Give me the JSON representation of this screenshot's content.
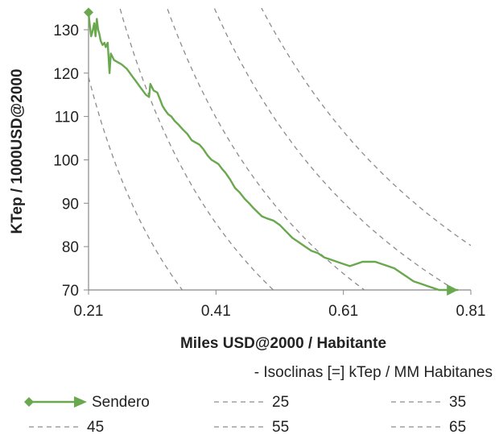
{
  "chart_data": {
    "type": "line",
    "title": "",
    "xlabel": "Miles USD@2000 / Habitante",
    "ylabel": "KTep / 1000USD@2000",
    "xlim": [
      0.21,
      0.81
    ],
    "ylim": [
      70,
      135
    ],
    "x_ticks": [
      0.21,
      0.41,
      0.61,
      0.81
    ],
    "x_tick_labels": [
      "0.21",
      "0.41",
      "0.61",
      "0.81"
    ],
    "y_ticks": [
      70,
      80,
      90,
      100,
      110,
      120,
      130
    ],
    "y_tick_labels": [
      "70",
      "80",
      "90",
      "100",
      "110",
      "120",
      "130"
    ],
    "grid": false,
    "note": "- Isoclinas [=] kTep / MM Habitanes",
    "colors": {
      "sendero": "#6aa84f",
      "isoclina": "#8c8c8c",
      "axis": "#888888"
    },
    "series": [
      {
        "name": "Sendero",
        "style": "solid-line-diamond-start-arrow-end",
        "x": [
          0.21,
          0.212,
          0.214,
          0.216,
          0.219,
          0.221,
          0.223,
          0.225,
          0.227,
          0.229,
          0.232,
          0.235,
          0.237,
          0.24,
          0.243,
          0.245,
          0.25,
          0.256,
          0.262,
          0.27,
          0.275,
          0.28,
          0.285,
          0.29,
          0.295,
          0.3,
          0.305,
          0.307,
          0.312,
          0.318,
          0.322,
          0.326,
          0.33,
          0.335,
          0.34,
          0.345,
          0.352,
          0.358,
          0.365,
          0.372,
          0.378,
          0.384,
          0.39,
          0.397,
          0.403,
          0.409,
          0.414,
          0.419,
          0.425,
          0.432,
          0.44,
          0.447,
          0.455,
          0.462,
          0.468,
          0.475,
          0.482,
          0.49,
          0.5,
          0.51,
          0.52,
          0.53,
          0.54,
          0.55,
          0.56,
          0.57,
          0.58,
          0.59,
          0.6,
          0.61,
          0.62,
          0.63,
          0.64,
          0.65,
          0.66,
          0.67,
          0.68,
          0.69,
          0.7,
          0.71,
          0.72,
          0.73,
          0.74,
          0.75,
          0.76,
          0.77,
          0.78,
          0.79
        ],
        "y": [
          134.0,
          131.0,
          128.5,
          129.5,
          131.5,
          128.5,
          132.5,
          130.0,
          129.0,
          127.5,
          126.5,
          127.0,
          126.0,
          127.0,
          120.0,
          124.5,
          123.0,
          122.5,
          122.0,
          121.0,
          120.0,
          119.0,
          118.0,
          117.0,
          116.0,
          115.0,
          114.5,
          117.5,
          116.0,
          115.5,
          114.0,
          112.5,
          111.5,
          110.5,
          110.0,
          109.0,
          108.0,
          107.0,
          106.0,
          104.5,
          104.0,
          103.5,
          102.5,
          101.0,
          100.0,
          99.5,
          99.0,
          98.0,
          97.0,
          95.5,
          93.5,
          92.5,
          91.0,
          90.0,
          89.0,
          88.0,
          87.0,
          86.5,
          86.0,
          85.0,
          83.5,
          82.0,
          81.0,
          80.0,
          79.0,
          78.5,
          77.5,
          77.0,
          76.5,
          76.0,
          75.5,
          76.0,
          76.5,
          76.5,
          76.5,
          76.0,
          75.5,
          75.0,
          74.0,
          73.0,
          72.0,
          71.5,
          71.0,
          70.5,
          70.0,
          70.0,
          70.0,
          70.0
        ]
      }
    ],
    "isoclines": [
      {
        "name": "25",
        "value": 25
      },
      {
        "name": "35",
        "value": 35
      },
      {
        "name": "45",
        "value": 45
      },
      {
        "name": "55",
        "value": 55
      },
      {
        "name": "65",
        "value": 65
      }
    ],
    "legend": {
      "placement": "bottom",
      "items": [
        "Sendero",
        "25",
        "35",
        "45",
        "55",
        "65"
      ]
    }
  }
}
